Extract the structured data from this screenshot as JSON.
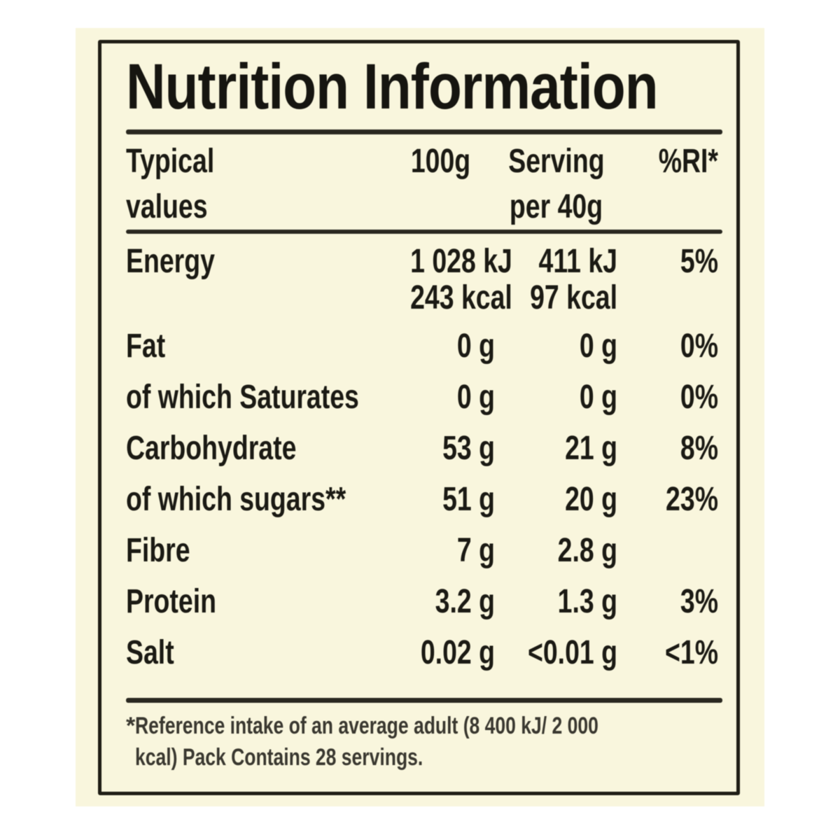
{
  "label": {
    "title": "Nutrition Information",
    "header": {
      "typical": [
        "Typical",
        "values"
      ],
      "per100": "100g",
      "serving": [
        "Serving",
        "per 40g"
      ],
      "ri": "%RI*"
    },
    "rows": [
      {
        "name": "Energy",
        "per100": "1 028 kJ",
        "per100_line2": "243 kcal",
        "serving": "411 kJ",
        "serving_line2": "97 kcal",
        "ri": "5%"
      },
      {
        "name": "Fat",
        "per100": "0 g",
        "serving": "0 g",
        "ri": "0%"
      },
      {
        "name": "of which Saturates",
        "per100": "0 g",
        "serving": "0 g",
        "ri": "0%"
      },
      {
        "name": "Carbohydrate",
        "per100": "53 g",
        "serving": "21 g",
        "ri": "8%"
      },
      {
        "name": "of which sugars**",
        "per100": "51 g",
        "serving": "20 g",
        "ri": "23%"
      },
      {
        "name": "Fibre",
        "per100": "7 g",
        "serving": "2.8 g",
        "ri": ""
      },
      {
        "name": "Protein",
        "per100": "3.2 g",
        "serving": "1.3 g",
        "ri": "3%"
      },
      {
        "name": "Salt",
        "per100": "0.02 g",
        "serving": "<0.01 g",
        "ri": "<1%"
      }
    ],
    "footnote": {
      "marker": "*",
      "lines": [
        "Reference intake of an average adult (8 400 kJ/ 2 000",
        "kcal) Pack Contains 28 servings."
      ]
    },
    "colors": {
      "sheet_background": "#f9f6dd",
      "page_background": "#ffffff",
      "text": "#1b1a14",
      "frame_border": "#1f1d15",
      "rule": "#2a2820",
      "footnote_text": "#3a3830"
    }
  }
}
